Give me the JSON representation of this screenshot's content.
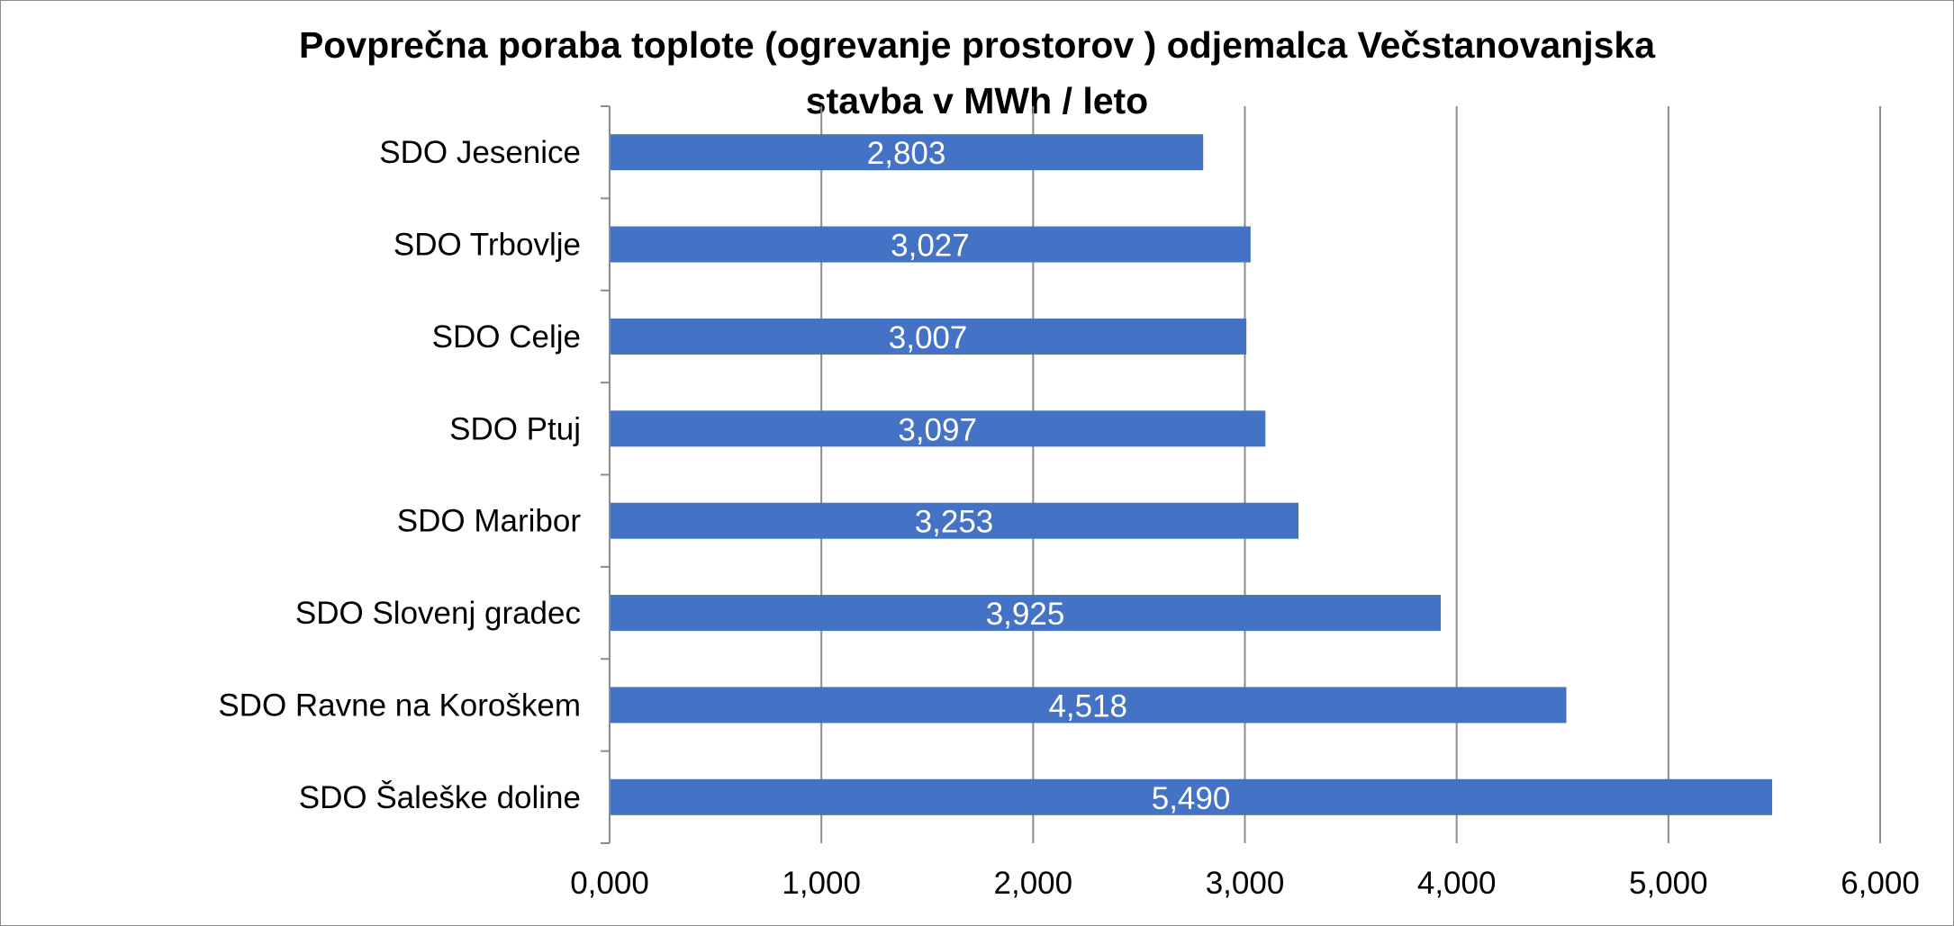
{
  "chart_data": {
    "type": "bar",
    "orientation": "horizontal",
    "title_line1": "Povprečna poraba toplote (ogrevanje prostorov ) odjemalca Večstanovanjska",
    "title_line2": "stavba v MWh / leto",
    "categories": [
      "SDO Jesenice",
      "SDO Trbovlje",
      "SDO Celje",
      "SDO Ptuj",
      "SDO Maribor",
      "SDO Slovenj gradec",
      "SDO Ravne na Koroškem",
      "SDO Šaleške doline"
    ],
    "values": [
      2.803,
      3.027,
      3.007,
      3.097,
      3.253,
      3.925,
      4.518,
      5.49
    ],
    "value_labels": [
      "2,803",
      "3,027",
      "3,007",
      "3,097",
      "3,253",
      "3,925",
      "4,518",
      "5,490"
    ],
    "x_ticks": [
      0,
      1,
      2,
      3,
      4,
      5,
      6
    ],
    "x_tick_labels": [
      "0,000",
      "1,000",
      "2,000",
      "3,000",
      "4,000",
      "5,000",
      "6,000"
    ],
    "xlim": [
      0,
      6
    ],
    "grid": "vertical",
    "bar_color": "#4472C4",
    "gridline_color": "#8c8c8c",
    "legend": "none"
  }
}
